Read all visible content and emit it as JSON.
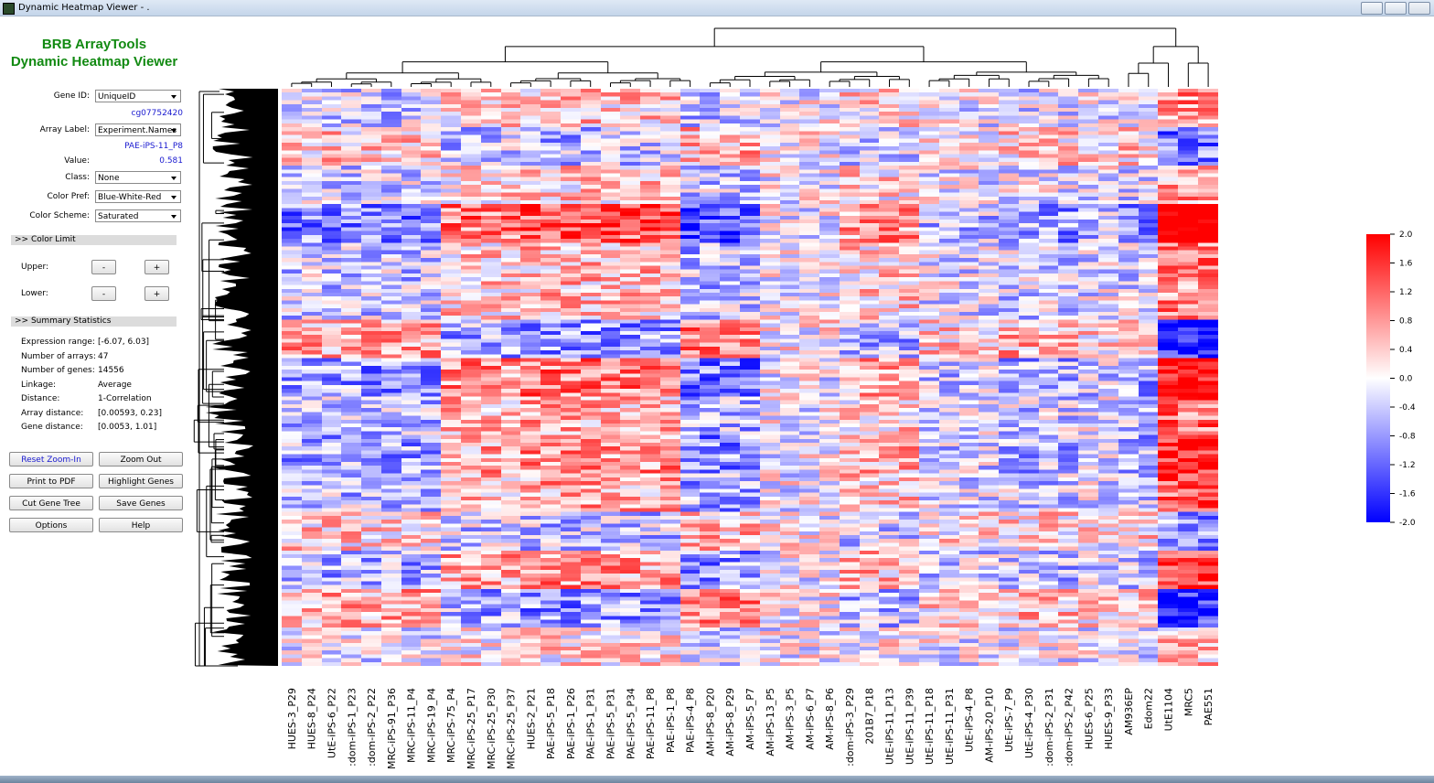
{
  "window": {
    "title": "Dynamic Heatmap Viewer - ."
  },
  "sidebar": {
    "app_name": "BRB ArrayTools",
    "viewer_name": "Dynamic Heatmap Viewer",
    "gene_id": {
      "label": "Gene ID:",
      "selected": "UniqueID",
      "current": "cg07752420"
    },
    "array_label": {
      "label": "Array Label:",
      "selected": "Experiment.Names",
      "current": "PAE-iPS-11_P8"
    },
    "value": {
      "label": "Value:",
      "current": "0.581"
    },
    "class": {
      "label": "Class:",
      "selected": "None"
    },
    "color_pref": {
      "label": "Color Pref:",
      "selected": "Blue-White-Red"
    },
    "color_scheme": {
      "label": "Color Scheme:",
      "selected": "Saturated"
    },
    "color_limit": {
      "header": ">> Color Limit",
      "upper": "Upper:",
      "lower": "Lower:",
      "minus": "-",
      "plus": "+"
    },
    "summary": {
      "header": ">> Summary Statistics",
      "rows": [
        [
          "Expression range:",
          "[-6.07, 6.03]"
        ],
        [
          "Number of arrays:",
          "47"
        ],
        [
          "Number of genes:",
          "14556"
        ],
        [
          "Linkage:",
          "Average"
        ],
        [
          "Distance:",
          "1-Correlation"
        ],
        [
          "Array distance:",
          "[0.00593, 0.23]"
        ],
        [
          "Gene distance:",
          "[0.0053, 1.01]"
        ]
      ]
    },
    "buttons": [
      "Reset Zoom-In",
      "Zoom Out",
      "Print to PDF",
      "Highlight Genes",
      "Cut Gene Tree",
      "Save Genes",
      "Options",
      "Help"
    ]
  },
  "heatmap": {
    "columns": [
      "HUES-3_P29",
      "HUES-8_P24",
      "UtE-iPS-6_P22",
      ":dom-iPS-1_P23",
      ":dom-iPS-2_P22",
      "MRC-iPS-91_P36",
      "MRC-iPS-11_P4",
      "MRC-iPS-19_P4",
      "MRC-iPS-75_P4",
      "MRC-iPS-25_P17",
      "MRC-iPS-25_P30",
      "MRC-iPS-25_P37",
      "HUES-2_P21",
      "PAE-iPS-5_P18",
      "PAE-iPS-1_P26",
      "PAE-iPS-1_P31",
      "PAE-iPS-5_P31",
      "PAE-iPS-5_P34",
      "PAE-iPS-11_P8",
      "PAE-iPS-1_P8",
      "PAE-iPS-4_P8",
      "AM-iPS-8_P20",
      "AM-iPS-8_P29",
      "AM-iPS-5_P7",
      "AM-iPS-13_P5",
      "AM-iPS-3_P5",
      "AM-iPS-6_P7",
      "AM-iPS-8_P6",
      ":dom-iPS-3_P29",
      "201B7_P18",
      "UtE-iPS-11_P13",
      "UtE-iPS-11_P39",
      "UtE-iPS-11_P18",
      "UtE-iPS-11_P31",
      "UtE-iPS-4_P8",
      "AM-iPS-20_P10",
      "UtE-iPS-7_P9",
      "UtE-iPS-4_P30",
      ":dom-iPS-2_P31",
      ":dom-iPS-2_P42",
      "HUES-6_P25",
      "HUES-9_P33",
      "AM936EP",
      "Edom22",
      "UtE1104",
      "MRC5",
      "PAE551"
    ],
    "colorbar_labels": [
      "2.0",
      "1.6",
      "1.2",
      "0.8",
      "0.4",
      "0.0",
      "-0.4",
      "-0.8",
      "-1.2",
      "-1.6",
      "-2.0"
    ]
  }
}
